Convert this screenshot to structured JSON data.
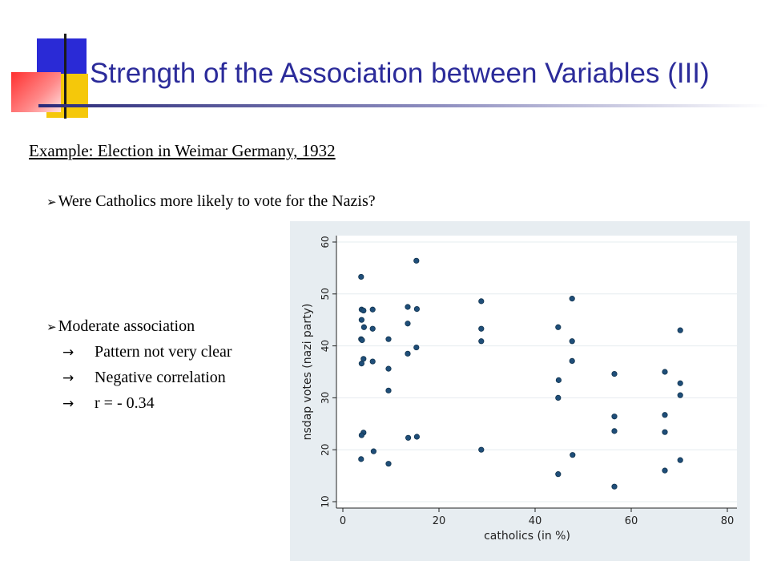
{
  "title": "Strength of the Association between Variables (III)",
  "subtitle": "Example: Election in Weimar Germany, 1932",
  "question": "Were Catholics more likely to vote for the Nazis?",
  "findings": {
    "heading": "Moderate association",
    "items": [
      "Pattern not very clear",
      "Negative correlation",
      "r = - 0.34"
    ]
  },
  "colors": {
    "title": "#2b2b9a",
    "marker": "#1f4e79",
    "panel": "#e7edf1"
  },
  "chart_data": {
    "type": "scatter",
    "xlabel": "catholics (in %)",
    "ylabel": "nsdap votes (nazi party)",
    "xlim": [
      0,
      80
    ],
    "ylim": [
      10,
      60
    ],
    "xticks": [
      0,
      20,
      40,
      60,
      80
    ],
    "yticks": [
      10,
      20,
      30,
      40,
      50,
      60
    ],
    "grid": "horizontal",
    "points": [
      {
        "x": 3.8,
        "y": 53.3
      },
      {
        "x": 3.9,
        "y": 47.0
      },
      {
        "x": 4.3,
        "y": 46.8
      },
      {
        "x": 3.9,
        "y": 45.0
      },
      {
        "x": 4.4,
        "y": 43.6
      },
      {
        "x": 3.8,
        "y": 41.3
      },
      {
        "x": 4.0,
        "y": 41.1
      },
      {
        "x": 4.3,
        "y": 37.5
      },
      {
        "x": 3.9,
        "y": 36.6
      },
      {
        "x": 4.3,
        "y": 23.3
      },
      {
        "x": 3.9,
        "y": 22.8
      },
      {
        "x": 3.8,
        "y": 18.2
      },
      {
        "x": 6.2,
        "y": 47.0
      },
      {
        "x": 6.2,
        "y": 43.3
      },
      {
        "x": 6.2,
        "y": 37.0
      },
      {
        "x": 6.4,
        "y": 19.7
      },
      {
        "x": 9.5,
        "y": 41.3
      },
      {
        "x": 9.5,
        "y": 35.6
      },
      {
        "x": 9.5,
        "y": 31.4
      },
      {
        "x": 9.5,
        "y": 17.3
      },
      {
        "x": 13.5,
        "y": 47.5
      },
      {
        "x": 13.5,
        "y": 44.3
      },
      {
        "x": 13.5,
        "y": 38.5
      },
      {
        "x": 13.6,
        "y": 22.3
      },
      {
        "x": 15.3,
        "y": 56.4
      },
      {
        "x": 15.4,
        "y": 47.1
      },
      {
        "x": 15.3,
        "y": 39.7
      },
      {
        "x": 15.4,
        "y": 22.5
      },
      {
        "x": 28.8,
        "y": 48.6
      },
      {
        "x": 28.8,
        "y": 43.3
      },
      {
        "x": 28.8,
        "y": 40.9
      },
      {
        "x": 28.8,
        "y": 20.0
      },
      {
        "x": 44.8,
        "y": 43.6
      },
      {
        "x": 44.9,
        "y": 33.4
      },
      {
        "x": 44.8,
        "y": 30.0
      },
      {
        "x": 44.8,
        "y": 15.3
      },
      {
        "x": 47.7,
        "y": 49.1
      },
      {
        "x": 47.7,
        "y": 40.9
      },
      {
        "x": 47.7,
        "y": 37.1
      },
      {
        "x": 47.8,
        "y": 19.0
      },
      {
        "x": 56.5,
        "y": 34.6
      },
      {
        "x": 56.5,
        "y": 26.4
      },
      {
        "x": 56.5,
        "y": 23.6
      },
      {
        "x": 56.5,
        "y": 12.9
      },
      {
        "x": 67.0,
        "y": 35.0
      },
      {
        "x": 67.0,
        "y": 26.7
      },
      {
        "x": 67.0,
        "y": 23.4
      },
      {
        "x": 67.0,
        "y": 16.0
      },
      {
        "x": 70.2,
        "y": 43.0
      },
      {
        "x": 70.2,
        "y": 32.8
      },
      {
        "x": 70.2,
        "y": 30.5
      },
      {
        "x": 70.2,
        "y": 18.0
      }
    ]
  }
}
